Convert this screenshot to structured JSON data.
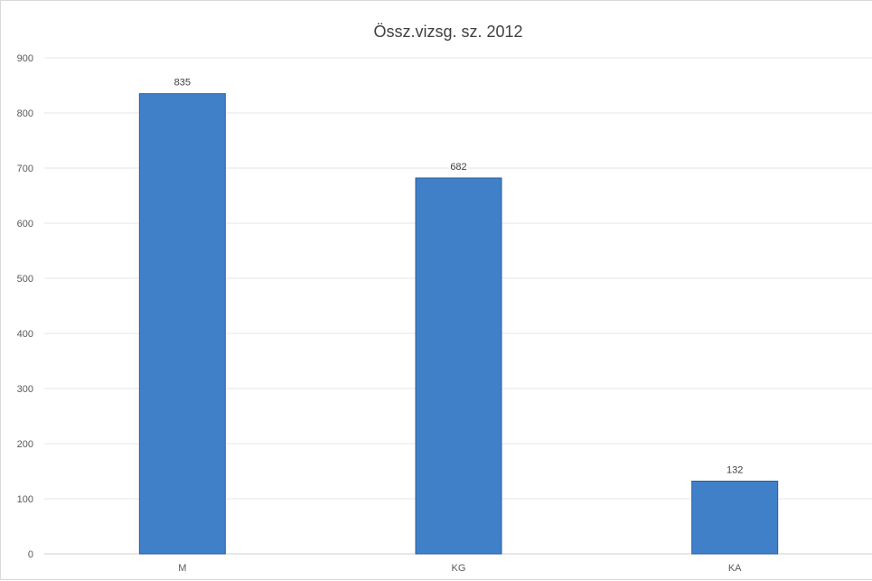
{
  "chart_data": {
    "type": "bar",
    "title": "Össz.vizsg. sz. 2012",
    "categories": [
      "M",
      "KG",
      "KA"
    ],
    "values": [
      835,
      682,
      132
    ],
    "data_labels": [
      "835",
      "682",
      "132"
    ],
    "y_ticks": [
      "0",
      "100",
      "200",
      "300",
      "400",
      "500",
      "600",
      "700",
      "800",
      "900"
    ],
    "ylim": [
      0,
      900
    ],
    "grid": true,
    "legend": "none",
    "bar_color": "#4080c8",
    "bar_edge_color": "#2e5f99",
    "grid_color": "#e6e6e6"
  }
}
